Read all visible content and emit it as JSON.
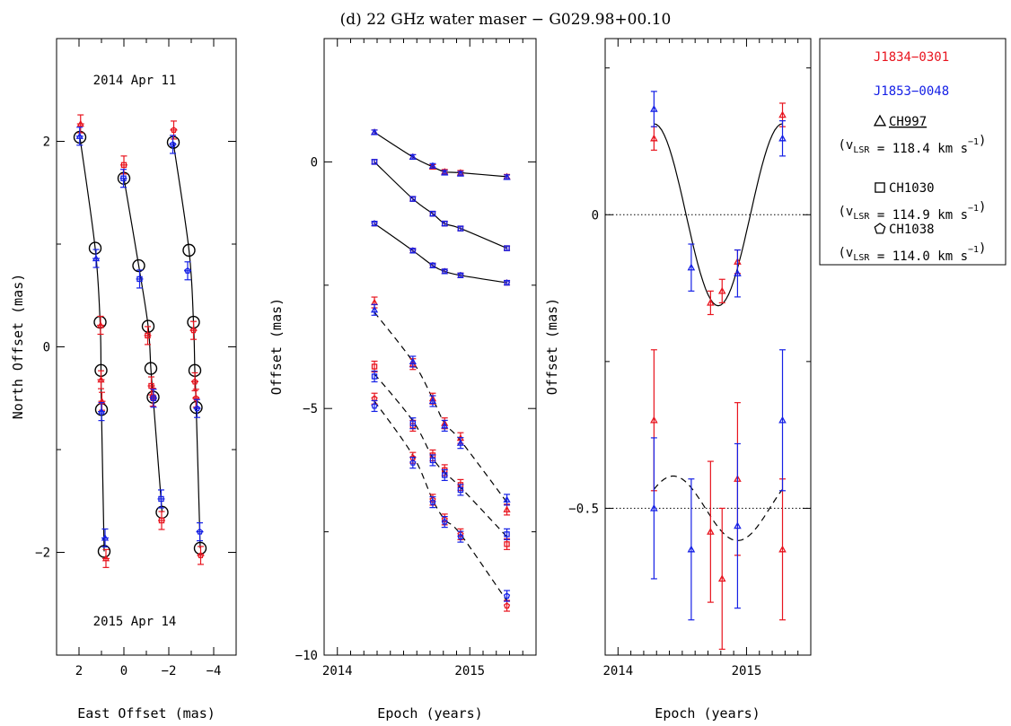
{
  "figure_title": "(d) 22 GHz water maser − G029.98+00.10",
  "colors": {
    "red": "#e8141e",
    "blue": "#1520e6",
    "black": "#000000"
  },
  "legend": {
    "qso1": "J1834−0301",
    "qso2": "J1853−0048",
    "spots": [
      {
        "symbol": "triangle",
        "name": "CH997",
        "underline": true,
        "vlsr_prefix": "(v",
        "vlsr_sub": "LSR",
        "vlsr_value": " = 118.4 km s",
        "vlsr_exp": "−1",
        "vlsr_close": ")"
      },
      {
        "symbol": "square",
        "name": "CH1030",
        "underline": false,
        "vlsr_prefix": "(v",
        "vlsr_sub": "LSR",
        "vlsr_value": " = 114.9 km s",
        "vlsr_exp": "−1",
        "vlsr_close": ")"
      },
      {
        "symbol": "pentagon",
        "name": "CH1038",
        "underline": false,
        "vlsr_prefix": "(v",
        "vlsr_sub": "LSR",
        "vlsr_value": " = 114.0 km s",
        "vlsr_exp": "−1",
        "vlsr_close": ")"
      }
    ]
  },
  "chart_data": [
    {
      "type": "scatter",
      "panel": "sky",
      "xlabel": "East Offset (mas)",
      "ylabel": "North Offset (mas)",
      "xlim": [
        3.0,
        -5.0
      ],
      "ylim": [
        -3.0,
        3.0
      ],
      "xticks": [
        2,
        0,
        -2,
        -4
      ],
      "yticks": [
        2,
        0,
        -2
      ],
      "annotations": [
        "2014 Apr 11",
        "2015 Apr 14"
      ],
      "tracks": [
        {
          "symbol": "triangle",
          "model": [
            [
              1.96,
              2.04
            ],
            [
              1.28,
              0.96
            ],
            [
              1.06,
              0.24
            ],
            [
              1.02,
              -0.23
            ],
            [
              1.0,
              -0.61
            ],
            [
              0.88,
              -1.99
            ]
          ],
          "red": [
            [
              1.93,
              2.17
            ],
            [
              1.04,
              0.21
            ],
            [
              1.02,
              -0.32
            ],
            [
              0.98,
              -0.53
            ],
            [
              0.8,
              -2.06
            ]
          ],
          "blue": [
            [
              1.97,
              2.05
            ],
            [
              1.24,
              0.86
            ],
            [
              1.0,
              -0.63
            ],
            [
              0.84,
              -1.86
            ]
          ]
        },
        {
          "symbol": "square",
          "model": [
            [
              0.0,
              1.64
            ],
            [
              -0.66,
              0.79
            ],
            [
              -1.08,
              0.2
            ],
            [
              -1.2,
              -0.21
            ],
            [
              -1.3,
              -0.49
            ],
            [
              -1.7,
              -1.61
            ]
          ],
          "red": [
            [
              0.0,
              1.77
            ],
            [
              -1.06,
              0.11
            ],
            [
              -1.22,
              -0.38
            ],
            [
              -1.29,
              -0.49
            ],
            [
              -1.68,
              -1.69
            ]
          ],
          "blue": [
            [
              0.02,
              1.64
            ],
            [
              -0.7,
              0.66
            ],
            [
              -1.32,
              -0.5
            ],
            [
              -1.66,
              -1.48
            ]
          ]
        },
        {
          "symbol": "pentagon",
          "model": [
            [
              -2.2,
              1.99
            ],
            [
              -2.9,
              0.94
            ],
            [
              -3.1,
              0.24
            ],
            [
              -3.16,
              -0.23
            ],
            [
              -3.22,
              -0.59
            ],
            [
              -3.4,
              -1.96
            ]
          ],
          "red": [
            [
              -2.22,
              2.11
            ],
            [
              -3.1,
              0.16
            ],
            [
              -3.16,
              -0.34
            ],
            [
              -3.21,
              -0.5
            ],
            [
              -3.42,
              -2.03
            ]
          ],
          "blue": [
            [
              -2.18,
              1.97
            ],
            [
              -2.84,
              0.74
            ],
            [
              -3.26,
              -0.6
            ],
            [
              -3.38,
              -1.8
            ]
          ]
        }
      ]
    },
    {
      "type": "line",
      "panel": "offset_vs_epoch",
      "xlabel": "Epoch (years)",
      "ylabel": "Offset (mas)",
      "xlim": [
        2013.9,
        2015.5
      ],
      "ylim": [
        -10.0,
        2.5
      ],
      "xticks": [
        2014,
        2015
      ],
      "yticks": [
        0,
        -5,
        -10
      ],
      "epochs": [
        2014.28,
        2014.57,
        2014.72,
        2014.81,
        2014.93,
        2015.28
      ],
      "series": [
        {
          "symbol": "triangle",
          "style": "solid",
          "epochs": [
            2014.28,
            2014.57,
            2014.72,
            2014.81,
            2014.93,
            2015.28
          ],
          "model": [
            0.6,
            0.1,
            -0.1,
            -0.2,
            -0.22,
            -0.3
          ],
          "red": [
            0.6,
            0.1,
            -0.1,
            -0.2,
            -0.22,
            -0.3
          ],
          "blue": [
            0.6,
            0.1,
            -0.08,
            -0.22,
            -0.24,
            -0.31
          ]
        },
        {
          "symbol": "square",
          "style": "solid",
          "epochs": [
            2014.28,
            2014.57,
            2014.72,
            2014.81,
            2014.93,
            2015.28
          ],
          "model": [
            0.0,
            -0.75,
            -1.05,
            -1.25,
            -1.35,
            -1.75
          ],
          "red": [
            0.0,
            -0.75,
            -1.05,
            -1.25,
            -1.35,
            -1.75
          ],
          "blue": [
            0.0,
            -0.75,
            -1.05,
            -1.25,
            -1.35,
            -1.75
          ]
        },
        {
          "symbol": "pentagon",
          "style": "solid",
          "epochs": [
            2014.28,
            2014.57,
            2014.72,
            2014.81,
            2014.93,
            2015.28
          ],
          "model": [
            -1.25,
            -1.8,
            -2.1,
            -2.22,
            -2.3,
            -2.45
          ],
          "red": [
            -1.25,
            -1.8,
            -2.1,
            -2.22,
            -2.3,
            -2.45
          ],
          "blue": [
            -1.25,
            -1.8,
            -2.1,
            -2.22,
            -2.3,
            -2.45
          ]
        },
        {
          "symbol": "triangle",
          "style": "dashed",
          "epochs": [
            2014.28,
            2014.57,
            2014.72,
            2014.81,
            2014.93,
            2015.28
          ],
          "model": [
            -3.05,
            -4.05,
            -4.8,
            -5.3,
            -5.65,
            -6.9
          ],
          "red": [
            -2.85,
            -4.1,
            -4.8,
            -5.3,
            -5.6,
            -7.05
          ],
          "blue": [
            -3.0,
            -4.05,
            -4.85,
            -5.35,
            -5.7,
            -6.85
          ]
        },
        {
          "symbol": "square",
          "style": "dashed",
          "epochs": [
            2014.28,
            2014.57,
            2014.72,
            2014.81,
            2014.93,
            2015.28
          ],
          "model": [
            -4.3,
            -5.25,
            -6.0,
            -6.3,
            -6.6,
            -7.6
          ],
          "red": [
            -4.15,
            -5.35,
            -5.95,
            -6.25,
            -6.55,
            -7.75
          ],
          "blue": [
            -4.35,
            -5.3,
            -6.05,
            -6.35,
            -6.65,
            -7.55
          ]
        },
        {
          "symbol": "pentagon",
          "style": "dashed",
          "epochs": [
            2014.28,
            2014.57,
            2014.72,
            2014.81,
            2014.93,
            2015.28
          ],
          "model": [
            -4.85,
            -5.95,
            -6.85,
            -7.25,
            -7.55,
            -8.9
          ],
          "red": [
            -4.8,
            -6.0,
            -6.85,
            -7.25,
            -7.55,
            -9.0
          ],
          "blue": [
            -4.95,
            -6.1,
            -6.9,
            -7.3,
            -7.6,
            -8.8
          ]
        }
      ]
    },
    {
      "type": "scatter",
      "panel": "residual_vs_epoch",
      "xlabel": "Epoch (years)",
      "ylabel": "Offset (mas)",
      "xlim": [
        2013.9,
        2015.5
      ],
      "ylim": [
        -0.75,
        0.3
      ],
      "xticks": [
        2014,
        2015
      ],
      "yticks": [
        0,
        -0.5
      ],
      "ref_lines": [
        0,
        -0.5
      ],
      "model_solid": {
        "amplitude": 0.155,
        "center": 0.0,
        "period": 1.0,
        "peak_epoch": 2014.28
      },
      "model_dashed": {
        "amplitude": 0.055,
        "center": -0.5,
        "period": 1.0,
        "peak_epoch": 2014.43
      },
      "upper": {
        "epochs": [
          2014.28,
          2014.57,
          2014.72,
          2014.81,
          2014.93,
          2015.28
        ],
        "red": [
          [
            0.13,
            0.02
          ],
          [
            null,
            null
          ],
          [
            -0.15,
            0.02
          ],
          [
            -0.13,
            0.02
          ],
          [
            -0.08,
            0.02
          ],
          [
            0.17,
            0.02
          ]
        ],
        "blue": [
          [
            0.18,
            0.03
          ],
          [
            -0.09,
            0.04
          ],
          [
            null,
            null
          ],
          [
            null,
            null
          ],
          [
            -0.1,
            0.04
          ],
          [
            0.13,
            0.03
          ]
        ]
      },
      "lower": {
        "epochs": [
          2014.28,
          2014.57,
          2014.72,
          2014.81,
          2014.93,
          2015.28
        ],
        "red": [
          [
            -0.35,
            0.12
          ],
          [
            null,
            null
          ],
          [
            -0.54,
            0.12
          ],
          [
            -0.62,
            0.12
          ],
          [
            -0.45,
            0.13
          ],
          [
            -0.57,
            0.12
          ]
        ],
        "blue": [
          [
            -0.5,
            0.12
          ],
          [
            -0.57,
            0.12
          ],
          [
            null,
            null
          ],
          [
            null,
            null
          ],
          [
            -0.53,
            0.14
          ],
          [
            -0.35,
            0.12
          ]
        ]
      }
    }
  ]
}
